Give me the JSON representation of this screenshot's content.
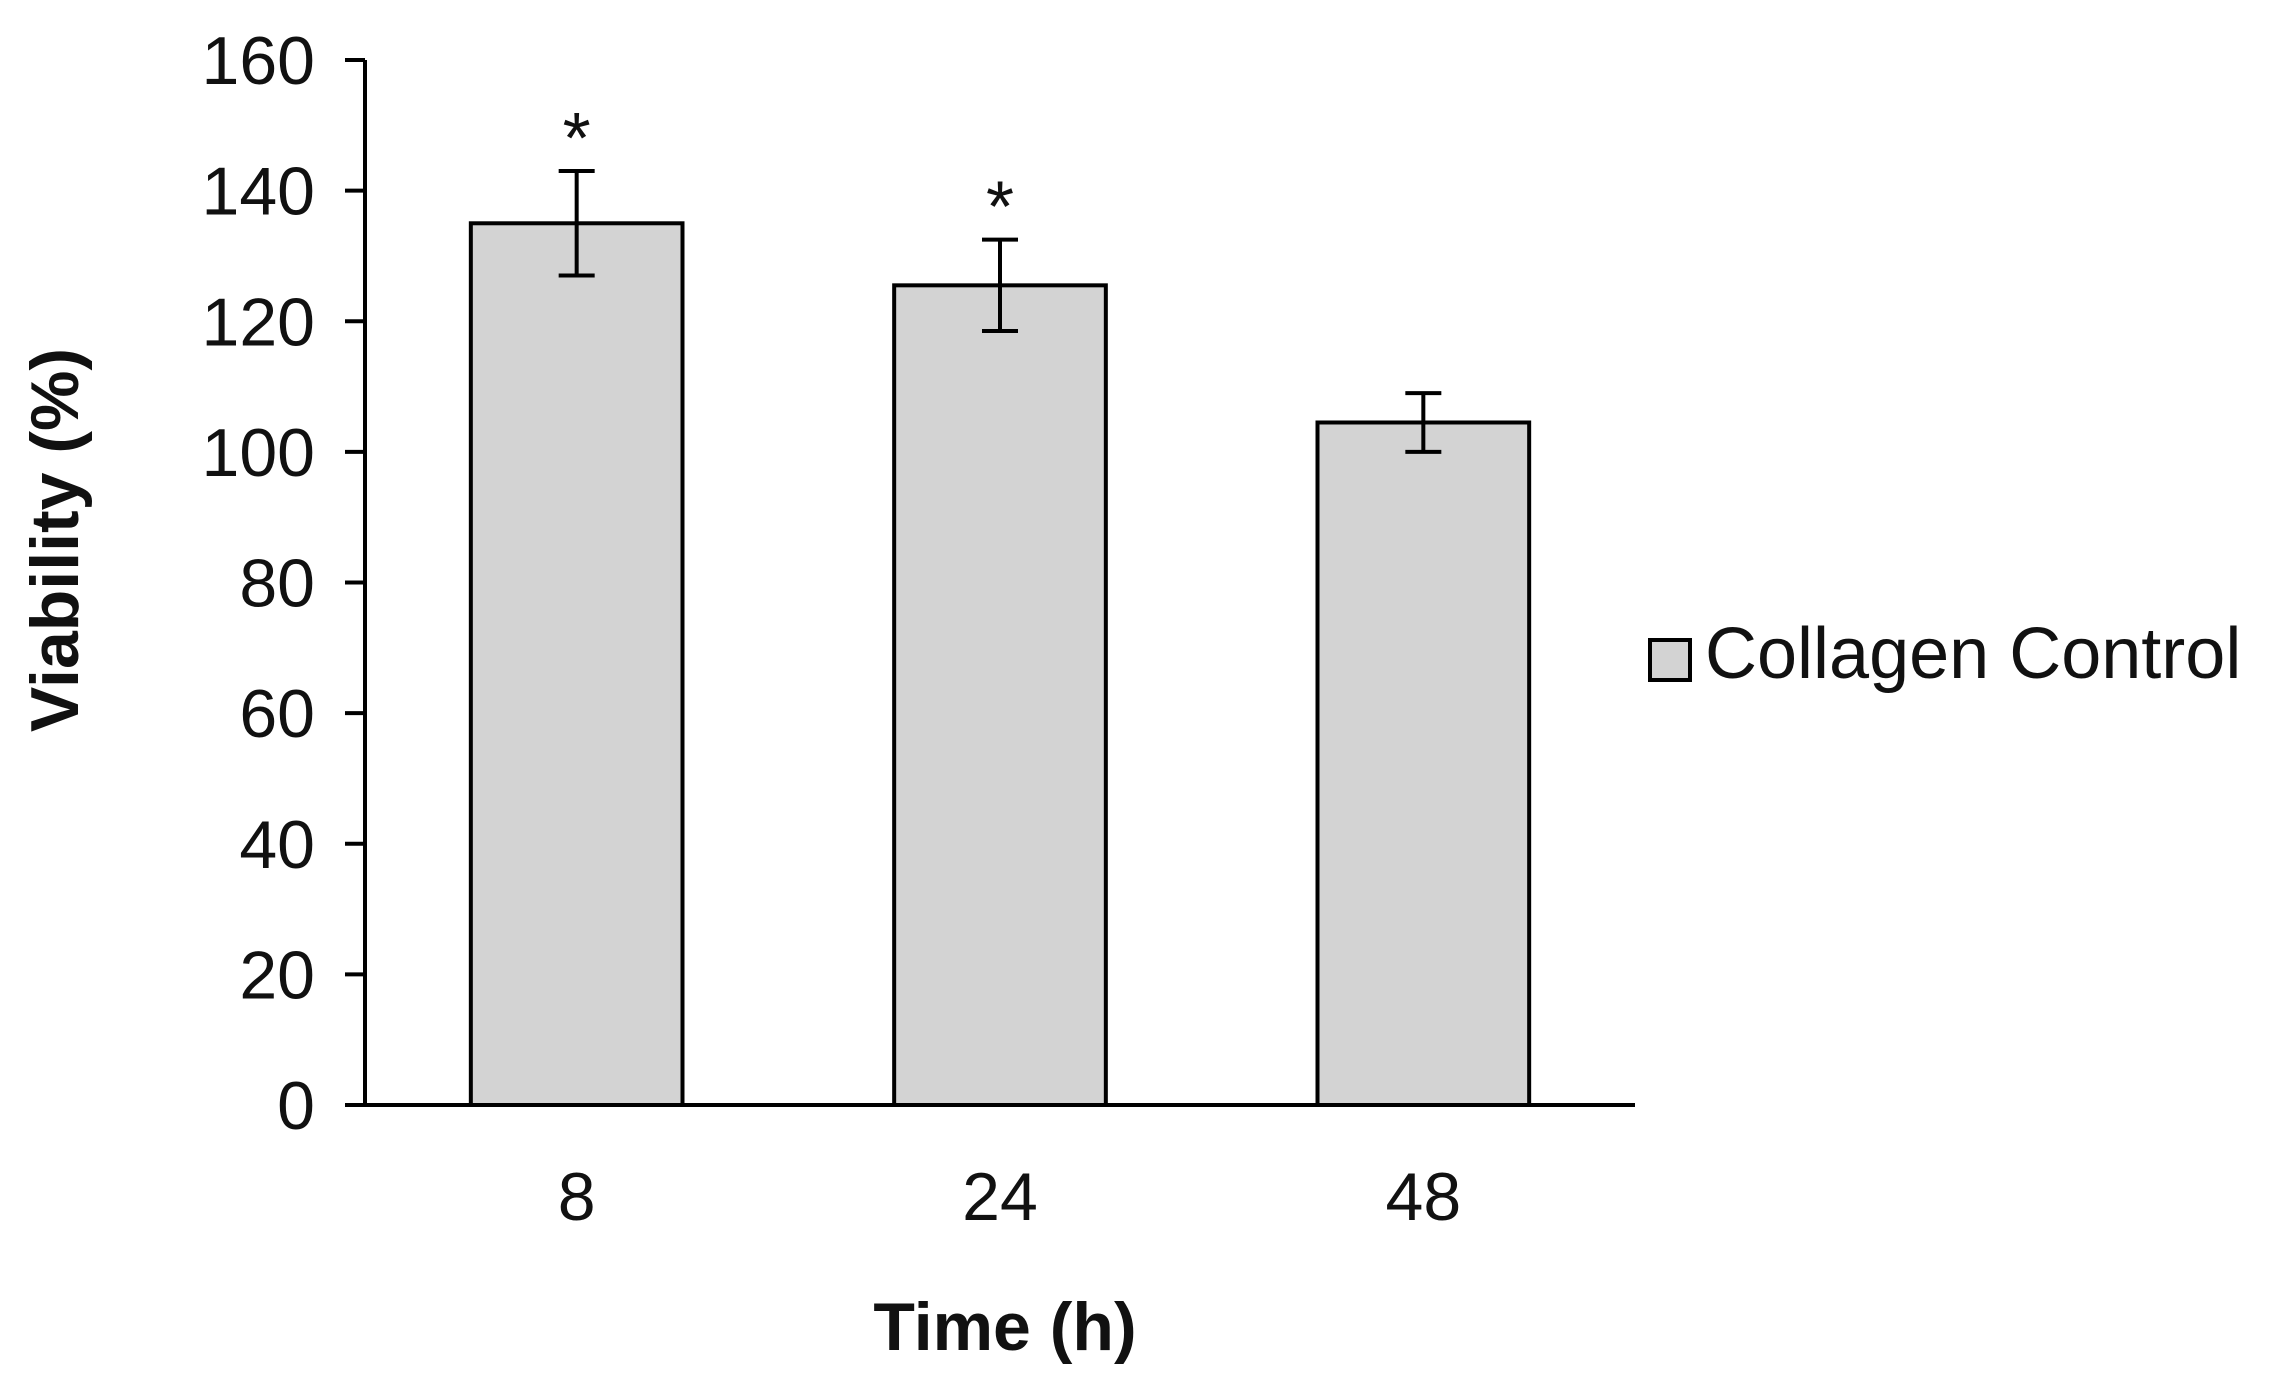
{
  "chart_data": {
    "type": "bar",
    "title": "",
    "xlabel": "Time (h)",
    "ylabel": "Viability (%)",
    "ylim": [
      0,
      160
    ],
    "yticks": [
      0,
      20,
      40,
      60,
      80,
      100,
      120,
      140,
      160
    ],
    "categories": [
      "8",
      "24",
      "48"
    ],
    "series": [
      {
        "name": "Collagen Control",
        "values": [
          135,
          125.5,
          104.5
        ],
        "error": [
          8,
          7,
          4.5
        ],
        "significance": [
          "*",
          "*",
          ""
        ],
        "color": "#d3d3d3"
      }
    ],
    "grid": false,
    "legend_position": "right"
  }
}
